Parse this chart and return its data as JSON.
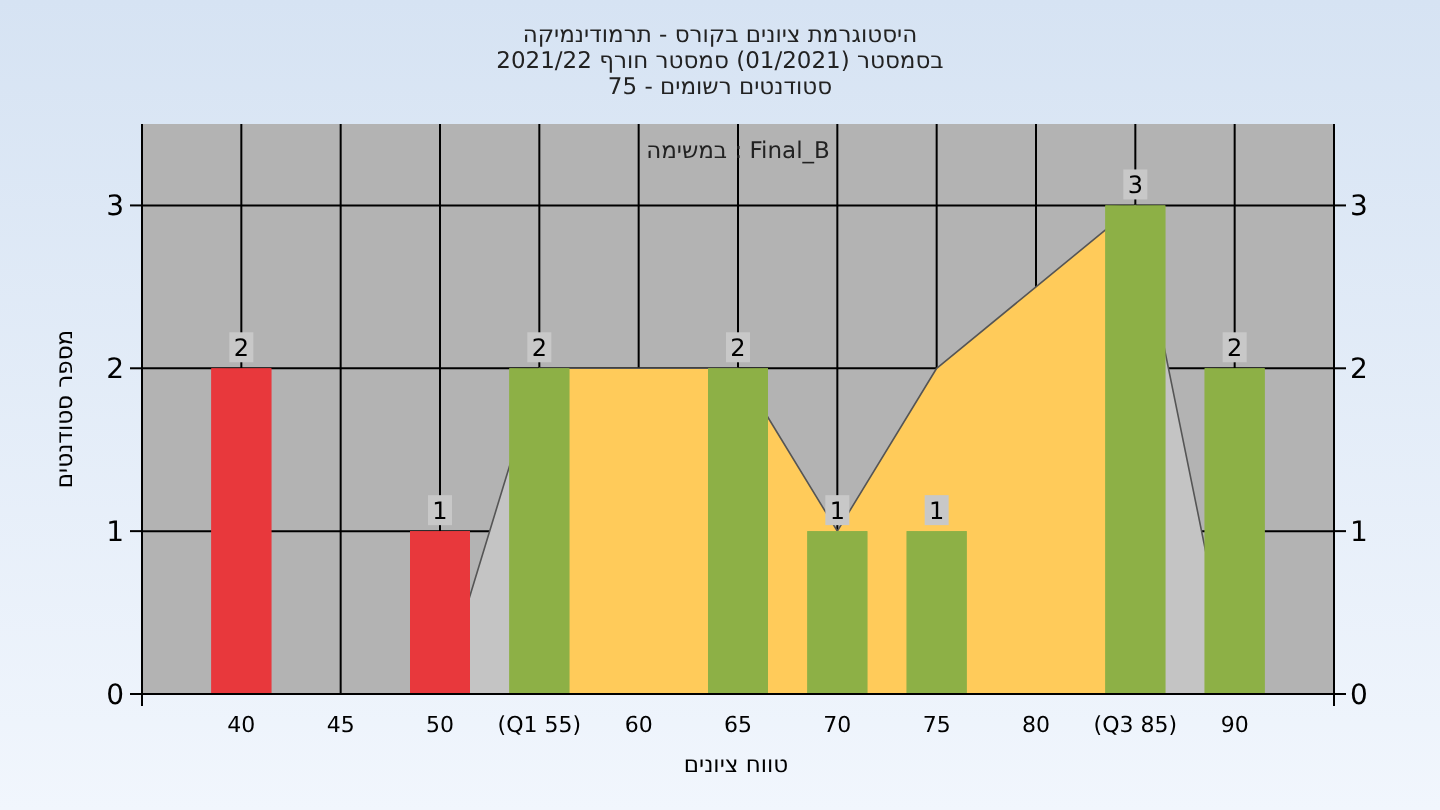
{
  "chart_data": {
    "type": "bar",
    "title": "היסטוגרמת ציונים בקורס - תרמודינמיקה",
    "subtitle": "בסמסטר  (01/2021)  סמסטר חורף 2021/22\nסטודנטים רשומים - 75",
    "annotations": [
      "במשימה : Final_B"
    ],
    "xlabel": "טווח ציונים",
    "ylabel": "מספר סטודנטים",
    "categories": [
      "40",
      "45",
      "50",
      "(Q1 55)",
      "60",
      "65",
      "70",
      "75",
      "80",
      "(Q3 85)",
      "90"
    ],
    "series": [
      {
        "type": "area",
        "color": "#c4c4c4",
        "values": [
          0,
          0,
          0,
          2,
          null,
          null,
          null,
          null,
          null,
          3,
          0
        ]
      },
      {
        "type": "area",
        "color": "#ffcb5a",
        "values": [
          null,
          null,
          null,
          2,
          2,
          2,
          1,
          2,
          2.5,
          3,
          null
        ]
      },
      {
        "type": "bar",
        "colors": [
          "#e8383c",
          "#e8383c",
          "#e8383c",
          "#8db046",
          "#8db046",
          "#8db046",
          "#8db046",
          "#8db046",
          "#8db046",
          "#8db046",
          "#8db046"
        ],
        "values": [
          2,
          0,
          1,
          2,
          0,
          2,
          1,
          1,
          0,
          3,
          2
        ],
        "value_labels": [
          "2",
          null,
          "1",
          "2",
          null,
          "2",
          "1",
          "1",
          null,
          "3",
          "2"
        ]
      }
    ],
    "ylim": [
      0,
      3.5
    ],
    "yticks": [
      0,
      1,
      2,
      3
    ],
    "y2lim": [
      0,
      3.5
    ],
    "y2ticks": [
      0,
      1,
      2,
      3
    ],
    "grid": true
  }
}
